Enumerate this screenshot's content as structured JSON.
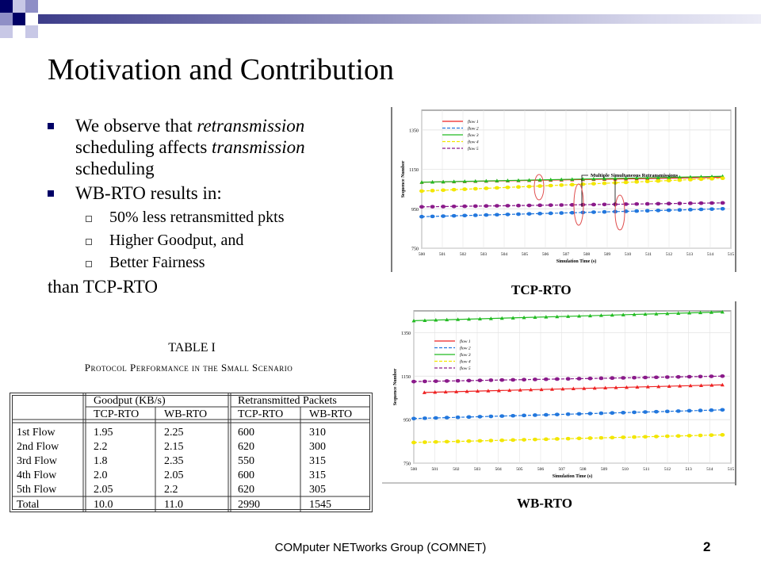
{
  "slide": {
    "title": "Motivation and Contribution",
    "bullets": [
      {
        "pre": "We observe that ",
        "em1": "retransmission",
        "mid": "scheduling affects ",
        "em2": "transmission",
        "post": "scheduling"
      },
      {
        "text": "WB-RTO results in:"
      }
    ],
    "subbullets": [
      "50% less retransmitted pkts",
      "Higher Goodput, and",
      "Better Fairness"
    ],
    "trailer": "than TCP-RTO",
    "footer": "COMputer NETworks Group (COMNET)",
    "page": "2"
  },
  "table": {
    "title": "TABLE I",
    "subtitle": "Protocol Performance in the Small Scenario",
    "group_headers": [
      "Goodput (KB/s)",
      "Retransmitted Packets"
    ],
    "sub_headers": [
      "TCP-RTO",
      "WB-RTO",
      "TCP-RTO",
      "WB-RTO"
    ],
    "rows": [
      [
        "1st Flow",
        "1.95",
        "2.25",
        "600",
        "310"
      ],
      [
        "2nd Flow",
        "2.2",
        "2.15",
        "620",
        "300"
      ],
      [
        "3rd Flow",
        "1.8",
        "2.35",
        "550",
        "315"
      ],
      [
        "4th Flow",
        "2.0",
        "2.05",
        "600",
        "315"
      ],
      [
        "5th Flow",
        "2.05",
        "2.2",
        "620",
        "305"
      ],
      [
        "Total",
        "10.0",
        "11.0",
        "2990",
        "1545"
      ]
    ]
  },
  "chart_data": [
    {
      "type": "line",
      "caption": "TCP-RTO",
      "xlabel": "Simulation Time (s)",
      "ylabel": "Sequence Number",
      "xlim": [
        500,
        515
      ],
      "ylim": [
        750,
        1450
      ],
      "xticks": [
        "500",
        "501",
        "502",
        "503",
        "504",
        "505",
        "506",
        "507",
        "508",
        "509",
        "510",
        "511",
        "512",
        "513",
        "514",
        "515"
      ],
      "yticks": [
        "750",
        "950",
        "1150",
        "1350"
      ],
      "legend": "top-left",
      "annotation": "Multiple Simultaneous Retransmissions",
      "series": [
        {
          "name": "flow 1",
          "color": "#ee2222",
          "x": [
            500,
            514.6
          ],
          "y": [
            1085,
            1110
          ]
        },
        {
          "name": "flow 2",
          "color": "#2277dd",
          "x": [
            500,
            514.6
          ],
          "y": [
            910,
            950
          ]
        },
        {
          "name": "flow 3",
          "color": "#22bb22",
          "x": [
            500,
            514.6
          ],
          "y": [
            1085,
            1115
          ]
        },
        {
          "name": "flow 4",
          "color": "#f2e600",
          "x": [
            500,
            514.6
          ],
          "y": [
            1040,
            1105
          ]
        },
        {
          "name": "flow 5",
          "color": "#8a1a8a",
          "x": [
            500,
            514.6
          ],
          "y": [
            960,
            980
          ]
        }
      ]
    },
    {
      "type": "line",
      "caption": "WB-RTO",
      "xlabel": "Simulation Time (s)",
      "ylabel": "Sequence Number",
      "xlim": [
        500,
        515
      ],
      "ylim": [
        750,
        1450
      ],
      "xticks": [
        "500",
        "501",
        "502",
        "503",
        "504",
        "505",
        "506",
        "507",
        "508",
        "509",
        "510",
        "511",
        "512",
        "513",
        "514",
        "515"
      ],
      "yticks": [
        "750",
        "950",
        "1150",
        "1350"
      ],
      "legend": "top-left",
      "series": [
        {
          "name": "flow 1",
          "color": "#ee2222",
          "x": [
            500.5,
            514.6
          ],
          "y": [
            1075,
            1110
          ]
        },
        {
          "name": "flow 2",
          "color": "#2277dd",
          "x": [
            500,
            514.6
          ],
          "y": [
            955,
            995
          ]
        },
        {
          "name": "flow 3",
          "color": "#22bb22",
          "x": [
            500,
            514.6
          ],
          "y": [
            1405,
            1445
          ]
        },
        {
          "name": "flow 4",
          "color": "#f2e600",
          "x": [
            500,
            514.6
          ],
          "y": [
            845,
            880
          ]
        },
        {
          "name": "flow 5",
          "color": "#8a1a8a",
          "x": [
            500,
            514.6
          ],
          "y": [
            1125,
            1150
          ]
        }
      ]
    }
  ]
}
